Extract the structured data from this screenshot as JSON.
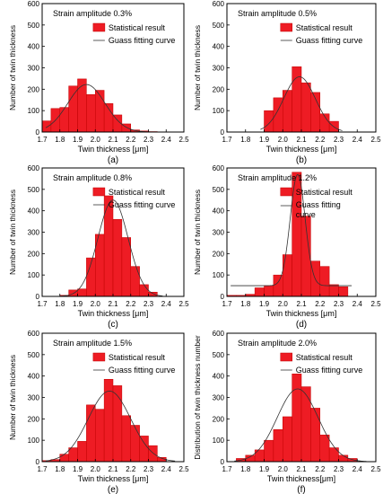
{
  "chart_data": [
    {
      "type": "bar",
      "panel": "(a)",
      "annotation": "Strain amplitude 0.3%",
      "xlabel": "Twin thickness [μm]",
      "ylabel": "Number of twin thickness",
      "xlim": [
        1.7,
        2.5
      ],
      "ylim": [
        0,
        600
      ],
      "xticks": [
        "1.7",
        "1.8",
        "1.9",
        "2.0",
        "2.1",
        "2.2",
        "2.3",
        "2.4",
        "2.5"
      ],
      "yticks": [
        "0",
        "100",
        "200",
        "300",
        "400",
        "500",
        "600"
      ],
      "legend": [
        "Statistical result",
        "Guass fitting curve"
      ],
      "legend_position": "top-right",
      "bar_width": 0.05,
      "series": [
        {
          "name": "Statistical result",
          "x": [
            1.725,
            1.775,
            1.825,
            1.875,
            1.925,
            1.975,
            2.025,
            2.075,
            2.125,
            2.175,
            2.225,
            2.275,
            2.325
          ],
          "values": [
            52,
            110,
            115,
            215,
            248,
            175,
            195,
            133,
            80,
            38,
            10,
            5,
            2
          ]
        },
        {
          "name": "Guass fitting curve",
          "curve": {
            "a": 222,
            "mu": 1.95,
            "sigma": 0.105,
            "y0": 0,
            "from": 1.72,
            "to": 2.38
          }
        }
      ]
    },
    {
      "type": "bar",
      "panel": "(b)",
      "annotation": "Strain amplitude 0.5%",
      "xlabel": "Twin thickness [μm]",
      "ylabel": "Number of twin thickness",
      "xlim": [
        1.7,
        2.5
      ],
      "ylim": [
        0,
        600
      ],
      "xticks": [
        "1.7",
        "1.8",
        "1.9",
        "2.0",
        "2.1",
        "2.2",
        "2.3",
        "2.4",
        "2.5"
      ],
      "yticks": [
        "0",
        "100",
        "200",
        "300",
        "400",
        "500",
        "600"
      ],
      "legend": [
        "Statistical result",
        "Guass fitting curve"
      ],
      "legend_position": "top-right",
      "bar_width": 0.05,
      "series": [
        {
          "name": "Statistical result",
          "x": [
            1.925,
            1.975,
            2.025,
            2.075,
            2.125,
            2.175,
            2.225,
            2.275
          ],
          "values": [
            100,
            160,
            195,
            305,
            230,
            185,
            85,
            50
          ]
        },
        {
          "name": "Guass fitting curve",
          "curve": {
            "a": 258,
            "mu": 2.09,
            "sigma": 0.085,
            "y0": 0,
            "from": 1.88,
            "to": 2.32
          }
        }
      ]
    },
    {
      "type": "bar",
      "panel": "(c)",
      "annotation": "Strain amplitude 0.8%",
      "xlabel": "Twin thickness [μm]",
      "ylabel": "Number of twin thickness",
      "xlim": [
        1.7,
        2.5
      ],
      "ylim": [
        0,
        600
      ],
      "xticks": [
        "1.7",
        "1.8",
        "1.9",
        "2.0",
        "2.1",
        "2.2",
        "2.3",
        "2.4",
        "2.5"
      ],
      "yticks": [
        "0",
        "100",
        "200",
        "300",
        "400",
        "500",
        "600"
      ],
      "legend": [
        "Statistical result",
        "Guass fitting curve"
      ],
      "legend_position": "top-right",
      "bar_width": 0.05,
      "series": [
        {
          "name": "Statistical result",
          "x": [
            1.825,
            1.875,
            1.925,
            1.975,
            2.025,
            2.075,
            2.125,
            2.175,
            2.225,
            2.275,
            2.325
          ],
          "values": [
            5,
            30,
            35,
            180,
            290,
            470,
            360,
            275,
            140,
            55,
            20
          ]
        },
        {
          "name": "Guass fitting curve",
          "curve": {
            "a": 450,
            "mu": 2.1,
            "sigma": 0.085,
            "y0": 0,
            "from": 1.8,
            "to": 2.38
          }
        }
      ]
    },
    {
      "type": "bar",
      "panel": "(d)",
      "annotation": "Strain amplitude 1.2%",
      "xlabel": "Twin thickness [μm]",
      "ylabel": "Number of twin thickness",
      "xlim": [
        1.7,
        2.5
      ],
      "ylim": [
        0,
        600
      ],
      "xticks": [
        "1.7",
        "1.8",
        "1.9",
        "2.0",
        "2.1",
        "2.2",
        "2.3",
        "2.4",
        "2.5"
      ],
      "yticks": [
        "0",
        "100",
        "200",
        "300",
        "400",
        "500",
        "600"
      ],
      "legend": [
        "Statistical result",
        "Guass fitting curve"
      ],
      "legend_position": "top-right",
      "bar_width": 0.05,
      "series": [
        {
          "name": "Statistical result",
          "x": [
            1.725,
            1.775,
            1.825,
            1.875,
            1.925,
            1.975,
            2.025,
            2.075,
            2.125,
            2.175,
            2.225,
            2.275,
            2.325
          ],
          "values": [
            5,
            5,
            10,
            40,
            50,
            100,
            195,
            580,
            375,
            165,
            140,
            55,
            45
          ]
        },
        {
          "name": "Guass fitting curve",
          "curve": {
            "a": 520,
            "mu": 2.08,
            "sigma": 0.04,
            "y0": 50,
            "from": 1.72,
            "to": 2.37
          }
        }
      ]
    },
    {
      "type": "bar",
      "panel": "(e)",
      "annotation": "Strain amplitude 1.5%",
      "xlabel": "Twin thickness [μm]",
      "ylabel": "Number of twin thickness",
      "xlim": [
        1.7,
        2.5
      ],
      "ylim": [
        0,
        600
      ],
      "xticks": [
        "1.7",
        "1.8",
        "1.9",
        "2.0",
        "2.1",
        "2.2",
        "2.3",
        "2.4",
        "2.5"
      ],
      "yticks": [
        "0",
        "100",
        "200",
        "300",
        "400",
        "500",
        "600"
      ],
      "legend": [
        "Statistical result",
        "Guass fitting curve"
      ],
      "legend_position": "top-right",
      "bar_width": 0.05,
      "series": [
        {
          "name": "Statistical result",
          "x": [
            1.725,
            1.775,
            1.825,
            1.875,
            1.925,
            1.975,
            2.025,
            2.075,
            2.125,
            2.175,
            2.225,
            2.275,
            2.325,
            2.375
          ],
          "values": [
            5,
            10,
            35,
            65,
            95,
            265,
            245,
            385,
            355,
            215,
            170,
            120,
            75,
            20
          ]
        },
        {
          "name": "Guass fitting curve",
          "curve": {
            "a": 330,
            "mu": 2.08,
            "sigma": 0.12,
            "y0": 0,
            "from": 1.72,
            "to": 2.45
          }
        }
      ]
    },
    {
      "type": "bar",
      "panel": "(f)",
      "annotation": "Strain amplitude 2.0%",
      "xlabel": "Twin thickness[μm]",
      "ylabel": "Distribution of twin thickness number",
      "xlim": [
        1.7,
        2.5
      ],
      "ylim": [
        0,
        600
      ],
      "xticks": [
        "1.7",
        "1.8",
        "1.9",
        "2.0",
        "2.1",
        "2.2",
        "2.3",
        "2.4",
        "2.5"
      ],
      "yticks": [
        "0",
        "100",
        "200",
        "300",
        "400",
        "500",
        "600"
      ],
      "legend": [
        "Statistical result",
        "Guass fitting curve"
      ],
      "legend_position": "top-right",
      "bar_width": 0.05,
      "series": [
        {
          "name": "Statistical result",
          "x": [
            1.775,
            1.825,
            1.875,
            1.925,
            1.975,
            2.025,
            2.075,
            2.125,
            2.175,
            2.225,
            2.275,
            2.325,
            2.375
          ],
          "values": [
            15,
            30,
            55,
            100,
            150,
            210,
            410,
            350,
            250,
            125,
            65,
            30,
            15
          ]
        },
        {
          "name": "Guass fitting curve",
          "curve": {
            "a": 340,
            "mu": 2.08,
            "sigma": 0.11,
            "y0": 0,
            "from": 1.74,
            "to": 2.45
          }
        }
      ]
    }
  ],
  "colors": {
    "bar_fill": "#ee1c24",
    "bar_edge": "#c00000",
    "curve": "#333333",
    "axes": "#000000"
  }
}
